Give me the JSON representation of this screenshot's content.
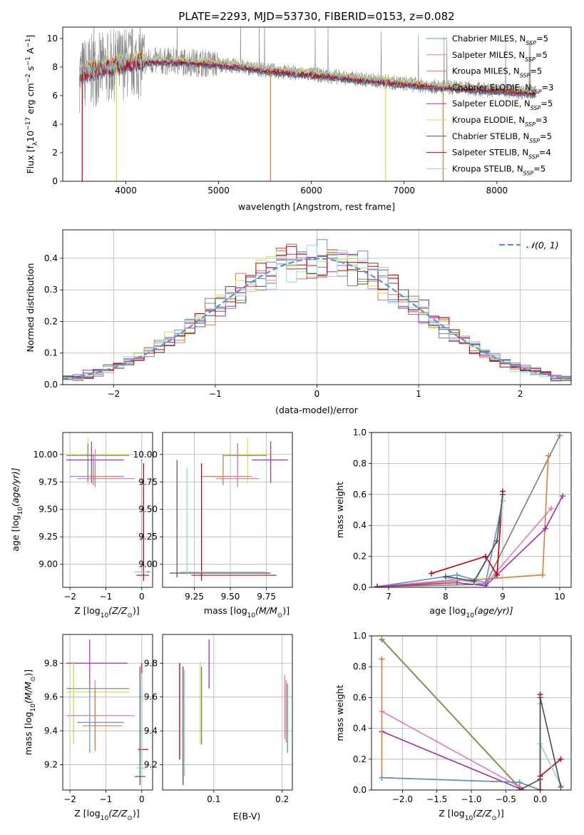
{
  "colors": {
    "chabrier_miles": "#5b8fd6",
    "salpeter_miles": "#e377c2",
    "kroupa_miles": "#e07b39",
    "chabrier_elodie": "#7f7f7f",
    "salpeter_elodie": "#9b30b0",
    "kroupa_elodie": "#c9e34a",
    "chabrier_stelib": "#4d4d4d",
    "salpeter_stelib": "#c00000",
    "kroupa_stelib": "#8fd3d9",
    "gaussian": "#5b8fd6",
    "spectrum_data": "#888888",
    "grid": "#b0b0b0"
  },
  "chart_data": [
    {
      "id": "spectrum",
      "type": "line",
      "title": "PLATE=2293, MJD=53730, FIBERID=0153, z=0.082",
      "xlabel": "wavelength [Angstrom, rest frame]",
      "ylabel_prefix": "Flux [f",
      "ylabel_sub": "λ",
      "ylabel_mid": "10",
      "ylabel_sup1": "−17",
      "ylabel_tail": " erg cm",
      "ylabel_sup2": "−2",
      "ylabel_tail2": " s",
      "ylabel_sup3": "−1",
      "ylabel_tail3": " A",
      "ylabel_sup4": "−1",
      "ylabel_end": "]",
      "xlim": [
        3320,
        8800
      ],
      "ylim": [
        0,
        10.8
      ],
      "xticks": [
        4000,
        5000,
        6000,
        7000,
        8000
      ],
      "yticks": [
        0,
        2,
        4,
        6,
        8,
        10
      ],
      "grid": false,
      "legend_position": "top-right",
      "legend": [
        {
          "name": "Chabrier MILES",
          "nssp": "5",
          "color_key": "chabrier_miles"
        },
        {
          "name": "Salpeter MILES",
          "nssp": "5",
          "color_key": "salpeter_miles"
        },
        {
          "name": "Kroupa MILES",
          "nssp": "5",
          "color_key": "kroupa_miles"
        },
        {
          "name": "Chabrier ELODIE",
          "nssp": "3",
          "color_key": "chabrier_elodie"
        },
        {
          "name": "Salpeter ELODIE",
          "nssp": "5",
          "color_key": "salpeter_elodie"
        },
        {
          "name": "Kroupa ELODIE",
          "nssp": "3",
          "color_key": "kroupa_elodie"
        },
        {
          "name": "Chabrier STELIB",
          "nssp": "5",
          "color_key": "chabrier_stelib"
        },
        {
          "name": "Salpeter STELIB",
          "nssp": "4",
          "color_key": "salpeter_stelib"
        },
        {
          "name": "Kroupa STELIB",
          "nssp": "5",
          "color_key": "kroupa_stelib"
        }
      ],
      "nssp_label": "N",
      "nssp_sub": "SSP",
      "continuum": {
        "x": [
          3500,
          3600,
          3800,
          4000,
          4200,
          4500,
          4800,
          5000,
          5200,
          5500,
          5800,
          6000,
          6300,
          6600,
          7000,
          7400,
          7800,
          8200,
          8400
        ],
        "y": [
          7.4,
          7.7,
          8.0,
          8.3,
          8.4,
          8.4,
          8.3,
          8.2,
          8.05,
          7.8,
          7.6,
          7.5,
          7.3,
          7.1,
          6.85,
          6.6,
          6.45,
          6.3,
          6.2
        ]
      },
      "drops": [
        {
          "x": 3530,
          "color_key": "salpeter_stelib"
        },
        {
          "x": 3900,
          "color_key": "kroupa_elodie"
        },
        {
          "x": 5560,
          "color_key": "kroupa_miles"
        },
        {
          "x": 6800,
          "color_key": "kroupa_elodie"
        },
        {
          "x": 7420,
          "color_key": "kroupa_miles"
        }
      ]
    },
    {
      "id": "residuals",
      "type": "line",
      "xlabel": "(data-model)/error",
      "ylabel": "Normed distribution",
      "xlim": [
        -2.5,
        2.5
      ],
      "ylim": [
        0,
        0.49
      ],
      "xticks": [
        -2,
        -1,
        0,
        1,
        2
      ],
      "yticks": [
        0.0,
        0.1,
        0.2,
        0.3,
        0.4
      ],
      "grid": true,
      "legend_position": "top-right",
      "gaussian_label": "𝒩(0, 1)",
      "bin_width": 0.1
    },
    {
      "id": "age_vs_Z",
      "type": "scatter",
      "xlabel_main": "Z [log",
      "xlabel_sub": "10",
      "xlabel_tail": "(Z/Z",
      "xlabel_sub2": "⊙",
      "xlabel_end": ")]",
      "ylabel_main": "age  [log",
      "ylabel_sub": "10",
      "ylabel_tail": "(age/yr)]",
      "xlim": [
        -2.2,
        0.3
      ],
      "ylim": [
        8.79,
        10.2
      ],
      "xticks": [
        -2,
        -1,
        0
      ],
      "yticks": [
        9.0,
        9.25,
        9.5,
        9.75,
        10.0
      ],
      "grid": true,
      "errorbars": [
        {
          "x": -1.5,
          "y": 10.0,
          "xlo": -2.1,
          "xhi": -0.35,
          "ylo": 9.72,
          "yhi": 10.15,
          "color_key": "kroupa_elodie"
        },
        {
          "x": -1.5,
          "y": 9.99,
          "xlo": -2.1,
          "xhi": -0.35,
          "ylo": 9.75,
          "yhi": 10.1,
          "color_key": "chabrier_elodie"
        },
        {
          "x": -1.4,
          "y": 9.95,
          "xlo": -2.1,
          "xhi": -0.5,
          "ylo": 9.74,
          "yhi": 10.12,
          "color_key": "salpeter_elodie"
        },
        {
          "x": -1.35,
          "y": 9.8,
          "xlo": -2.0,
          "xhi": -0.5,
          "ylo": 9.72,
          "yhi": 10.0,
          "color_key": "chabrier_miles"
        },
        {
          "x": -1.3,
          "y": 9.78,
          "xlo": -1.8,
          "xhi": -0.2,
          "ylo": 9.7,
          "yhi": 10.05,
          "color_key": "salpeter_miles"
        },
        {
          "x": -1.3,
          "y": 9.8,
          "xlo": -1.6,
          "xhi": -0.6,
          "ylo": 9.72,
          "yhi": 9.95,
          "color_key": "kroupa_miles"
        },
        {
          "x": 0.0,
          "y": 8.93,
          "xlo": -0.2,
          "xhi": 0.22,
          "ylo": 8.9,
          "yhi": 9.95,
          "color_key": "chabrier_stelib"
        },
        {
          "x": 0.05,
          "y": 8.9,
          "xlo": -0.15,
          "xhi": 0.2,
          "ylo": 8.85,
          "yhi": 9.92,
          "color_key": "salpeter_stelib"
        },
        {
          "x": 0.0,
          "y": 8.93,
          "xlo": -0.2,
          "xhi": 0.15,
          "ylo": 8.9,
          "yhi": 9.94,
          "color_key": "kroupa_stelib"
        }
      ]
    },
    {
      "id": "age_vs_mass",
      "type": "scatter",
      "xlabel_main": "mass [log",
      "xlabel_sub": "10",
      "xlabel_tail": "(M/M",
      "xlabel_sub2": "⊙",
      "xlabel_end": ")]",
      "xlim": [
        9.03,
        9.93
      ],
      "ylim": [
        8.79,
        10.2
      ],
      "xticks": [
        9.25,
        9.5,
        9.75
      ],
      "xticklabels": [
        "9.25",
        "9.50",
        "9.75"
      ],
      "yticks": [
        9.0,
        9.25,
        9.5,
        9.75,
        10.0
      ],
      "grid": true,
      "errorbars": [
        {
          "x": 9.62,
          "y": 10.0,
          "xlo": 9.45,
          "xhi": 9.8,
          "ylo": 9.74,
          "yhi": 10.15,
          "color_key": "kroupa_elodie"
        },
        {
          "x": 9.55,
          "y": 9.99,
          "xlo": 9.45,
          "xhi": 9.75,
          "ylo": 9.75,
          "yhi": 10.1,
          "color_key": "chabrier_elodie"
        },
        {
          "x": 9.78,
          "y": 9.95,
          "xlo": 9.65,
          "xhi": 9.9,
          "ylo": 9.74,
          "yhi": 10.12,
          "color_key": "salpeter_elodie"
        },
        {
          "x": 9.45,
          "y": 9.8,
          "xlo": 9.32,
          "xhi": 9.6,
          "ylo": 9.72,
          "yhi": 10.0,
          "color_key": "chabrier_miles"
        },
        {
          "x": 9.55,
          "y": 9.78,
          "xlo": 9.4,
          "xhi": 9.7,
          "ylo": 9.7,
          "yhi": 10.05,
          "color_key": "salpeter_miles"
        },
        {
          "x": 9.45,
          "y": 9.8,
          "xlo": 9.3,
          "xhi": 9.65,
          "ylo": 9.72,
          "yhi": 9.95,
          "color_key": "kroupa_miles"
        },
        {
          "x": 9.13,
          "y": 8.92,
          "xlo": 9.08,
          "xhi": 9.78,
          "ylo": 8.88,
          "yhi": 9.95,
          "color_key": "chabrier_stelib"
        },
        {
          "x": 9.3,
          "y": 8.9,
          "xlo": 9.23,
          "xhi": 9.82,
          "ylo": 8.85,
          "yhi": 9.92,
          "color_key": "salpeter_stelib"
        },
        {
          "x": 9.2,
          "y": 8.93,
          "xlo": 9.15,
          "xhi": 9.75,
          "ylo": 8.9,
          "yhi": 9.88,
          "color_key": "kroupa_stelib"
        }
      ]
    },
    {
      "id": "massweight_vs_age",
      "type": "line",
      "xlabel_main": "age  [log",
      "xlabel_sub": "10",
      "xlabel_tail": "(age/yr)]",
      "ylabel": "mass weight",
      "xlim": [
        6.7,
        10.2
      ],
      "ylim": [
        0,
        1.0
      ],
      "xticks": [
        7,
        8,
        9,
        10
      ],
      "yticks": [
        0.0,
        0.2,
        0.4,
        0.6,
        0.8,
        1.0
      ],
      "grid": true,
      "series": [
        {
          "color_key": "kroupa_elodie",
          "x": [
            6.8,
            8.7,
            10.0
          ],
          "y": [
            0.005,
            0.02,
            0.98
          ]
        },
        {
          "color_key": "chabrier_elodie",
          "x": [
            6.8,
            8.7,
            10.0
          ],
          "y": [
            0.005,
            0.02,
            0.98
          ]
        },
        {
          "color_key": "salpeter_miles",
          "x": [
            6.8,
            8.2,
            8.7,
            9.85
          ],
          "y": [
            0.005,
            0.05,
            0.02,
            0.51
          ]
        },
        {
          "color_key": "chabrier_miles",
          "x": [
            6.8,
            8.2,
            8.7,
            9.0
          ],
          "y": [
            0.005,
            0.08,
            0.03,
            0.56
          ]
        },
        {
          "color_key": "kroupa_miles",
          "x": [
            6.8,
            9.7,
            9.8
          ],
          "y": [
            0.005,
            0.08,
            0.85
          ]
        },
        {
          "color_key": "salpeter_elodie",
          "x": [
            6.8,
            8.2,
            8.7,
            9.75,
            10.05
          ],
          "y": [
            0.005,
            0.03,
            0.01,
            0.38,
            0.59
          ]
        },
        {
          "color_key": "salpeter_stelib",
          "x": [
            7.75,
            8.7,
            8.9,
            9.0
          ],
          "y": [
            0.09,
            0.2,
            0.08,
            0.62
          ]
        },
        {
          "color_key": "kroupa_stelib",
          "x": [
            8.0,
            8.5,
            8.9,
            9.0
          ],
          "y": [
            0.06,
            0.03,
            0.3,
            0.56
          ]
        },
        {
          "color_key": "chabrier_stelib",
          "x": [
            8.0,
            8.5,
            8.9,
            9.0
          ],
          "y": [
            0.07,
            0.04,
            0.3,
            0.6
          ]
        }
      ]
    },
    {
      "id": "mass_vs_Z",
      "type": "scatter",
      "xlabel_main": "Z [log",
      "xlabel_sub": "10",
      "xlabel_tail": "(Z/Z",
      "xlabel_sub2": "⊙",
      "xlabel_end": ")]",
      "ylabel_main": "mass [log",
      "ylabel_sub": "10",
      "ylabel_tail": "(M/M",
      "ylabel_sub2": "⊙",
      "ylabel_end": ")]",
      "xlim": [
        -2.2,
        0.3
      ],
      "ylim": [
        9.05,
        9.97
      ],
      "xticks": [
        -2,
        -1,
        0
      ],
      "yticks": [
        9.2,
        9.4,
        9.6,
        9.8
      ],
      "grid": true,
      "errorbars": [
        {
          "x": -1.45,
          "y": 9.8,
          "xlo": -2.1,
          "xhi": -0.4,
          "ylo": 9.65,
          "yhi": 9.94,
          "color_key": "salpeter_elodie"
        },
        {
          "x": -1.9,
          "y": 9.65,
          "xlo": -2.1,
          "xhi": -0.35,
          "ylo": 9.32,
          "yhi": 9.81,
          "color_key": "chabrier_elodie"
        },
        {
          "x": -1.9,
          "y": 9.63,
          "xlo": -2.1,
          "xhi": -0.35,
          "ylo": 9.32,
          "yhi": 9.81,
          "color_key": "kroupa_elodie"
        },
        {
          "x": -1.3,
          "y": 9.49,
          "xlo": -2.1,
          "xhi": -0.2,
          "ylo": 9.3,
          "yhi": 9.7,
          "color_key": "salpeter_miles"
        },
        {
          "x": -1.45,
          "y": 9.45,
          "xlo": -1.8,
          "xhi": -0.5,
          "ylo": 9.27,
          "yhi": 9.68,
          "color_key": "chabrier_miles"
        },
        {
          "x": -1.3,
          "y": 9.43,
          "xlo": -1.65,
          "xhi": -0.55,
          "ylo": 9.28,
          "yhi": 9.65,
          "color_key": "kroupa_miles"
        },
        {
          "x": 0.0,
          "y": 9.29,
          "xlo": -0.1,
          "xhi": 0.18,
          "ylo": 9.22,
          "yhi": 9.8,
          "color_key": "salpeter_stelib"
        },
        {
          "x": -0.05,
          "y": 9.13,
          "xlo": -0.2,
          "xhi": 0.1,
          "ylo": 9.08,
          "yhi": 9.78,
          "color_key": "chabrier_stelib"
        },
        {
          "x": 0.0,
          "y": 9.18,
          "xlo": -0.15,
          "xhi": 0.12,
          "ylo": 9.13,
          "yhi": 9.74,
          "color_key": "kroupa_stelib"
        }
      ]
    },
    {
      "id": "mass_vs_ebv",
      "type": "scatter",
      "xlabel": "E(B-V)",
      "xlim": [
        0.025,
        0.215
      ],
      "ylim": [
        9.05,
        9.97
      ],
      "xticks": [
        0.1,
        0.2
      ],
      "xticklabels": [
        "0.1",
        "0.2"
      ],
      "yticks": [
        9.2,
        9.4,
        9.6,
        9.8
      ],
      "grid": true,
      "vbars": [
        {
          "x": 0.05,
          "ylo": 9.23,
          "yhi": 9.8,
          "color_key": "salpeter_stelib"
        },
        {
          "x": 0.055,
          "ylo": 9.08,
          "yhi": 9.78,
          "color_key": "chabrier_stelib"
        },
        {
          "x": 0.057,
          "ylo": 9.13,
          "yhi": 9.76,
          "color_key": "kroupa_stelib"
        },
        {
          "x": 0.08,
          "ylo": 9.32,
          "yhi": 9.81,
          "color_key": "kroupa_elodie"
        },
        {
          "x": 0.082,
          "ylo": 9.32,
          "yhi": 9.78,
          "color_key": "chabrier_elodie"
        },
        {
          "x": 0.093,
          "ylo": 9.65,
          "yhi": 9.94,
          "color_key": "salpeter_elodie"
        },
        {
          "x": 0.204,
          "ylo": 9.35,
          "yhi": 9.73,
          "color_key": "salpeter_miles"
        },
        {
          "x": 0.206,
          "ylo": 9.33,
          "yhi": 9.7,
          "color_key": "kroupa_miles"
        },
        {
          "x": 0.208,
          "ylo": 9.27,
          "yhi": 9.68,
          "color_key": "chabrier_miles"
        }
      ]
    },
    {
      "id": "massweight_vs_Z",
      "type": "line",
      "xlabel_main": "Z [log",
      "xlabel_sub": "10",
      "xlabel_tail": "(Z/Z",
      "xlabel_sub2": "⊙",
      "xlabel_end": ")]",
      "ylabel": "mass weight",
      "xlim": [
        -2.45,
        0.45
      ],
      "ylim": [
        0,
        1.0
      ],
      "xticks": [
        -2.0,
        -1.5,
        -1.0,
        -0.5,
        0.0
      ],
      "xticklabels": [
        "−2.0",
        "−1.5",
        "−1.0",
        "−0.5",
        "0.0"
      ],
      "yticks": [
        0.0,
        0.2,
        0.4,
        0.6,
        0.8,
        1.0
      ],
      "grid": true,
      "series": [
        {
          "color_key": "kroupa_elodie",
          "x": [
            -2.3,
            -0.3
          ],
          "y": [
            0.98,
            0.02
          ]
        },
        {
          "color_key": "chabrier_elodie",
          "x": [
            -2.3,
            -0.3
          ],
          "y": [
            0.975,
            0.015
          ]
        },
        {
          "color_key": "salpeter_miles",
          "x": [
            -2.3,
            -0.3
          ],
          "y": [
            0.51,
            0.02
          ]
        },
        {
          "color_key": "salpeter_elodie",
          "x": [
            -2.3,
            -0.25
          ],
          "y": [
            0.38,
            0.0
          ]
        },
        {
          "color_key": "kroupa_miles",
          "x": [
            -2.3,
            -2.3,
            -0.3,
            0.0
          ],
          "y": [
            0.85,
            0.08,
            0.05,
            0.0
          ]
        },
        {
          "color_key": "chabrier_miles",
          "x": [
            -2.3,
            -0.3,
            0.0,
            0.0
          ],
          "y": [
            0.08,
            0.05,
            0.0,
            0.56
          ]
        },
        {
          "color_key": "salpeter_stelib",
          "x": [
            0.0,
            0.0,
            0.0,
            0.3
          ],
          "y": [
            0.62,
            0.0,
            0.09,
            0.2
          ]
        },
        {
          "color_key": "kroupa_stelib",
          "x": [
            0.0,
            0.0,
            0.3
          ],
          "y": [
            0.56,
            0.3,
            0.03
          ]
        },
        {
          "color_key": "chabrier_stelib",
          "x": [
            -0.3,
            0.0,
            0.0,
            0.3
          ],
          "y": [
            0.0,
            0.07,
            0.6,
            0.02
          ]
        }
      ]
    }
  ]
}
